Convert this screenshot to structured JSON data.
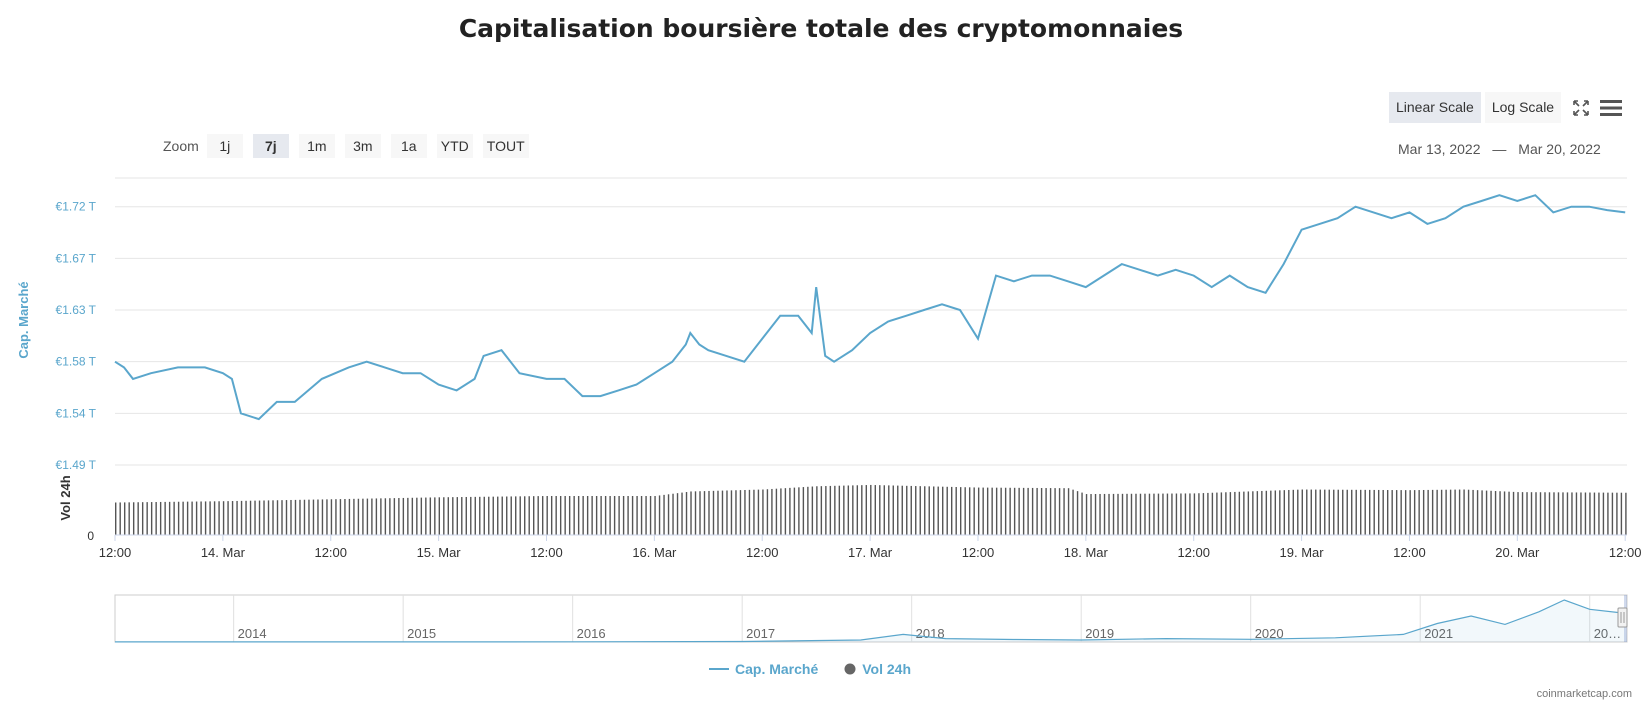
{
  "title": "Capitalisation boursière totale des cryptomonnaies",
  "scale_buttons": [
    {
      "label": "Linear Scale",
      "active": true
    },
    {
      "label": "Log Scale",
      "active": false
    }
  ],
  "zoom": {
    "label": "Zoom",
    "buttons": [
      {
        "label": "1j",
        "active": false
      },
      {
        "label": "7j",
        "active": true
      },
      {
        "label": "1m",
        "active": false
      },
      {
        "label": "3m",
        "active": false
      },
      {
        "label": "1a",
        "active": false
      },
      {
        "label": "YTD",
        "active": false
      },
      {
        "label": "TOUT",
        "active": false
      }
    ]
  },
  "range": {
    "from": "Mar 13, 2022",
    "separator": "—",
    "to": "Mar 20, 2022"
  },
  "icons": {
    "fullscreen": "fullscreen-icon",
    "menu": "hamburger-menu-icon"
  },
  "colors": {
    "cap_line": "#5aa6cc",
    "volume_bar": "#555555",
    "axis_text": "#5aa6cc",
    "grid": "#e6e6e6"
  },
  "chart_data": {
    "type": "line",
    "main_axis": {
      "ylabel": "Cap. Marché",
      "tick_labels": [
        "€1.49 T",
        "€1.54 T",
        "€1.58 T",
        "€1.63 T",
        "€1.67 T",
        "€1.72 T"
      ],
      "ticks": [
        1.49,
        1.535,
        1.58,
        1.625,
        1.67,
        1.715
      ],
      "ylim": [
        1.49,
        1.74
      ]
    },
    "volume_axis": {
      "ylabel": "Vol 24h",
      "tick_labels": [
        "0"
      ],
      "ylim": [
        0,
        1
      ]
    },
    "x_axis": {
      "tick_labels": [
        "12:00",
        "14. Mar",
        "12:00",
        "15. Mar",
        "12:00",
        "16. Mar",
        "12:00",
        "17. Mar",
        "12:00",
        "18. Mar",
        "12:00",
        "19. Mar",
        "12:00",
        "20. Mar",
        "12:00"
      ],
      "tick_hours": [
        12,
        24,
        36,
        48,
        60,
        72,
        84,
        96,
        108,
        120,
        132,
        144,
        156,
        168,
        180
      ],
      "xlim_hours": [
        12,
        180.2
      ]
    },
    "series": [
      {
        "name": "Cap. Marché",
        "x_hours": [
          12,
          13,
          14,
          16,
          19,
          22,
          24,
          25,
          26,
          28,
          30,
          32,
          35,
          38,
          40,
          42,
          44,
          46,
          48,
          50,
          52,
          53,
          55,
          57,
          60,
          62,
          64,
          66,
          68,
          70,
          71,
          72,
          74,
          75.5,
          76,
          77,
          78,
          80,
          82,
          84,
          86,
          88,
          89.5,
          90,
          91,
          92,
          94,
          96,
          98,
          100,
          102,
          104,
          106,
          108,
          110,
          112,
          114,
          116,
          118,
          120,
          122,
          124,
          126,
          128,
          130,
          132,
          134,
          136,
          138,
          140,
          142,
          144,
          146,
          148,
          150,
          152,
          154,
          156,
          158,
          160,
          162,
          164,
          166,
          168,
          170,
          172,
          174,
          176,
          178,
          180
        ],
        "values": [
          1.58,
          1.575,
          1.565,
          1.57,
          1.575,
          1.575,
          1.57,
          1.565,
          1.535,
          1.53,
          1.545,
          1.545,
          1.565,
          1.575,
          1.58,
          1.575,
          1.57,
          1.57,
          1.56,
          1.555,
          1.565,
          1.585,
          1.59,
          1.57,
          1.565,
          1.565,
          1.55,
          1.55,
          1.555,
          1.56,
          1.565,
          1.57,
          1.58,
          1.595,
          1.605,
          1.595,
          1.59,
          1.585,
          1.58,
          1.6,
          1.62,
          1.62,
          1.605,
          1.645,
          1.585,
          1.58,
          1.59,
          1.605,
          1.615,
          1.62,
          1.625,
          1.63,
          1.625,
          1.6,
          1.655,
          1.65,
          1.655,
          1.655,
          1.65,
          1.645,
          1.655,
          1.665,
          1.66,
          1.655,
          1.66,
          1.655,
          1.645,
          1.655,
          1.645,
          1.64,
          1.665,
          1.695,
          1.7,
          1.705,
          1.715,
          1.71,
          1.705,
          1.71,
          1.7,
          1.705,
          1.715,
          1.72,
          1.725,
          1.72,
          1.725,
          1.71,
          1.715,
          1.715,
          1.712,
          1.71
        ]
      },
      {
        "name": "Vol 24h",
        "x_hours": [
          12,
          24,
          36,
          48,
          60,
          72,
          76,
          84,
          90,
          96,
          108,
          118,
          120,
          132,
          144,
          156,
          162,
          168,
          180
        ],
        "values": [
          0.5,
          0.52,
          0.55,
          0.58,
          0.6,
          0.6,
          0.67,
          0.7,
          0.75,
          0.77,
          0.73,
          0.72,
          0.63,
          0.64,
          0.7,
          0.69,
          0.7,
          0.66,
          0.65
        ]
      }
    ],
    "navigator": {
      "years": [
        "2014",
        "2015",
        "2016",
        "2017",
        "2018",
        "2019",
        "2020",
        "2021",
        "20…"
      ],
      "x_years": [
        2013.3,
        2014.0,
        2015.0,
        2016.0,
        2017.0,
        2017.7,
        2017.95,
        2018.2,
        2018.6,
        2019.0,
        2019.5,
        2020.0,
        2020.5,
        2020.9,
        2021.1,
        2021.3,
        2021.5,
        2021.7,
        2021.85,
        2022.0,
        2022.2
      ],
      "values": [
        0.005,
        0.006,
        0.005,
        0.01,
        0.03,
        0.12,
        0.45,
        0.2,
        0.15,
        0.12,
        0.2,
        0.16,
        0.25,
        0.45,
        1.1,
        1.55,
        1.05,
        1.8,
        2.5,
        1.95,
        1.72
      ]
    },
    "legend": [
      {
        "name": "Cap. Marché",
        "marker": "line"
      },
      {
        "name": "Vol 24h",
        "marker": "circle"
      }
    ],
    "legend_position": "bottom-center"
  },
  "credit": "coinmarketcap.com"
}
